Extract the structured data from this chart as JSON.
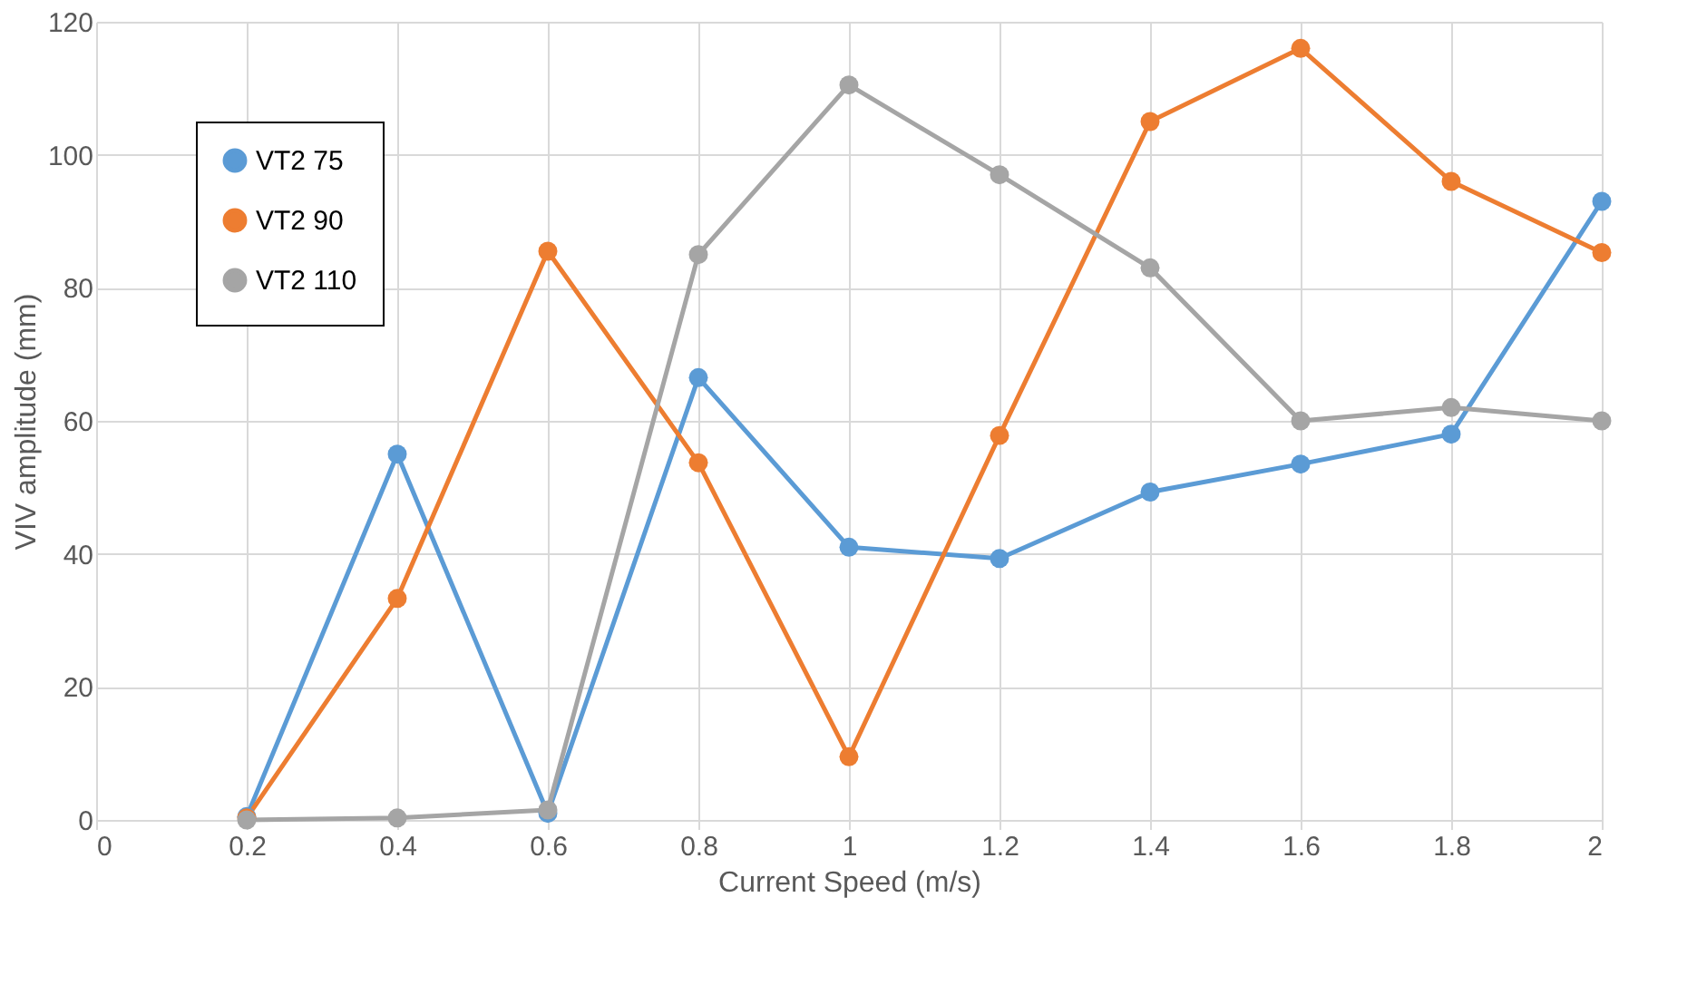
{
  "chart_data": {
    "type": "line",
    "xlabel": "Current Speed (m/s)",
    "ylabel": "VIV amplitude (mm)",
    "x": [
      0.2,
      0.4,
      0.6,
      0.8,
      1.0,
      1.2,
      1.4,
      1.6,
      1.8,
      2.0
    ],
    "series": [
      {
        "name": "VT2 75",
        "color": "#5b9bd5",
        "values": [
          0.5,
          55,
          1,
          66.5,
          41,
          39.3,
          49.3,
          53.5,
          58,
          93
        ]
      },
      {
        "name": "VT2 90",
        "color": "#ed7d31",
        "values": [
          0.3,
          33.3,
          85.5,
          53.7,
          9.5,
          57.8,
          105,
          116,
          96,
          85.3
        ]
      },
      {
        "name": "VT2 110",
        "color": "#a5a5a5",
        "values": [
          0,
          0.3,
          1.5,
          85,
          110.5,
          97,
          83,
          60,
          62,
          60
        ]
      }
    ],
    "xlim": [
      0,
      2
    ],
    "xticks": [
      0,
      0.2,
      0.4,
      0.6,
      0.8,
      1,
      1.2,
      1.4,
      1.6,
      1.8,
      2
    ],
    "ylim": [
      0,
      120
    ],
    "yticks": [
      0,
      20,
      40,
      60,
      80,
      100,
      120
    ],
    "grid": true,
    "legend": "top left",
    "marker": "circle",
    "line_style": "solid"
  }
}
